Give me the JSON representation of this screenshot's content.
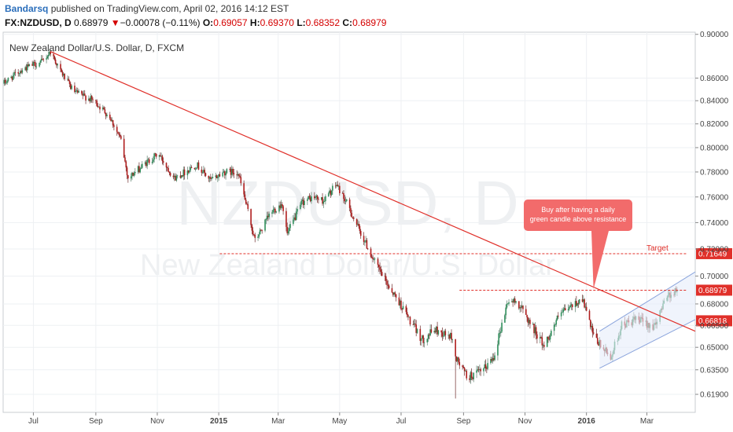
{
  "header": {
    "author": "Bandarsq",
    "published_text": "published on TradingView.com, April 02, 2016 14:12 EST"
  },
  "quote": {
    "symbol": "FX:NZDUSD, D",
    "last": "0.68979",
    "change_arrow": "▼",
    "change": "−0.00078 (−0.11%)",
    "o_label": "O:",
    "o": "0.69057",
    "h_label": "H:",
    "h": "0.69370",
    "l_label": "L:",
    "l": "0.68352",
    "c_label": "C:",
    "c": "0.68979"
  },
  "colors": {
    "up": "#2f8f5b",
    "down": "#b01e1e",
    "trendline": "#e0302a",
    "channel": "#8aa4dc",
    "callout": "#f26b6b"
  },
  "chart_data": {
    "type": "candlestick",
    "title": "New Zealand Dollar/U.S. Dollar, D, FXCM",
    "watermark_symbol": "NZDUSD, D",
    "watermark_name": "New Zealand Dollar/U.S. Dollar",
    "y_scale": "log",
    "ylim": [
      0.6075,
      0.902
    ],
    "y_ticks": [
      0.9,
      0.86,
      0.84,
      0.82,
      0.8,
      0.78,
      0.76,
      0.74,
      0.72,
      0.7,
      0.68,
      0.665,
      0.65,
      0.635,
      0.619
    ],
    "y_tick_labels": [
      "0.90000",
      "0.86000",
      "0.84000",
      "0.82000",
      "0.80000",
      "0.78000",
      "0.76000",
      "0.74000",
      "0.72000",
      "0.70000",
      "0.68000",
      "0.66500",
      "0.65000",
      "0.63500",
      "0.61900"
    ],
    "x_ticks": [
      "2014-07-01",
      "2014-09-01",
      "2014-11-01",
      "2015-01-01",
      "2015-03-01",
      "2015-05-01",
      "2015-07-01",
      "2015-09-01",
      "2015-11-01",
      "2016-01-01",
      "2016-03-01"
    ],
    "x_tick_labels": [
      "Jul",
      "Sep",
      "Nov",
      "2015",
      "Mar",
      "May",
      "Jul",
      "Sep",
      "Nov",
      "2016",
      "Mar"
    ],
    "xlim": [
      "2014-06-01",
      "2016-04-18"
    ],
    "anchors": [
      [
        "2014-06-01",
        0.855
      ],
      [
        "2014-06-20",
        0.868
      ],
      [
        "2014-07-10",
        0.875
      ],
      [
        "2014-07-18",
        0.884
      ],
      [
        "2014-07-28",
        0.866
      ],
      [
        "2014-08-10",
        0.848
      ],
      [
        "2014-08-30",
        0.84
      ],
      [
        "2014-09-15",
        0.826
      ],
      [
        "2014-09-26",
        0.806
      ],
      [
        "2014-10-03",
        0.775
      ],
      [
        "2014-10-22",
        0.788
      ],
      [
        "2014-11-02",
        0.795
      ],
      [
        "2014-11-18",
        0.775
      ],
      [
        "2014-12-10",
        0.786
      ],
      [
        "2014-12-24",
        0.773
      ],
      [
        "2015-01-06",
        0.78
      ],
      [
        "2015-01-20",
        0.78
      ],
      [
        "2015-02-01",
        0.742
      ],
      [
        "2015-02-06",
        0.726
      ],
      [
        "2015-02-22",
        0.748
      ],
      [
        "2015-03-05",
        0.755
      ],
      [
        "2015-03-10",
        0.731
      ],
      [
        "2015-03-25",
        0.756
      ],
      [
        "2015-04-05",
        0.76
      ],
      [
        "2015-04-15",
        0.757
      ],
      [
        "2015-04-28",
        0.77
      ],
      [
        "2015-05-08",
        0.755
      ],
      [
        "2015-05-20",
        0.735
      ],
      [
        "2015-06-05",
        0.71
      ],
      [
        "2015-06-15",
        0.697
      ],
      [
        "2015-07-02",
        0.678
      ],
      [
        "2015-07-10",
        0.668
      ],
      [
        "2015-07-22",
        0.655
      ],
      [
        "2015-08-03",
        0.662
      ],
      [
        "2015-08-20",
        0.657
      ],
      [
        "2015-08-25",
        0.642
      ],
      [
        "2015-09-05",
        0.63
      ],
      [
        "2015-09-20",
        0.634
      ],
      [
        "2015-10-01",
        0.644
      ],
      [
        "2015-10-15",
        0.682
      ],
      [
        "2015-10-25",
        0.681
      ],
      [
        "2015-11-05",
        0.668
      ],
      [
        "2015-11-20",
        0.651
      ],
      [
        "2015-12-05",
        0.672
      ],
      [
        "2015-12-28",
        0.684
      ],
      [
        "2016-01-08",
        0.657
      ],
      [
        "2016-01-25",
        0.643
      ],
      [
        "2016-02-05",
        0.665
      ],
      [
        "2016-02-20",
        0.669
      ],
      [
        "2016-03-10",
        0.664
      ],
      [
        "2016-03-18",
        0.684
      ],
      [
        "2016-03-31",
        0.69
      ]
    ],
    "extremes": [
      {
        "date": "2014-07-20",
        "high": 0.886
      },
      {
        "date": "2015-08-24",
        "low": 0.6163
      }
    ],
    "last_price": 0.68979,
    "annotations": {
      "descending_trendline": {
        "from": [
          "2014-07-18",
          0.884
        ],
        "to": [
          "2016-04-18",
          0.661
        ]
      },
      "resistance_line": {
        "from": [
          "2015-08-28",
          0.68979
        ],
        "to": [
          "2016-04-10",
          0.68979
        ]
      },
      "target_line": {
        "from": [
          "2015-01-02",
          0.71649
        ],
        "to": [
          "2016-04-10",
          0.71649
        ],
        "label": "Target"
      },
      "channel_upper": {
        "from": [
          "2016-01-14",
          0.661
        ],
        "to": [
          "2016-04-18",
          0.703
        ]
      },
      "channel_lower": {
        "from": [
          "2016-01-14",
          0.636
        ],
        "to": [
          "2016-04-18",
          0.669
        ]
      },
      "callout": {
        "text_line1": "Buy after having a daily",
        "text_line2": "green candle above resistance"
      },
      "price_labels": {
        "target": "0.71649",
        "last": "0.68979",
        "support": "0.66818"
      }
    }
  }
}
